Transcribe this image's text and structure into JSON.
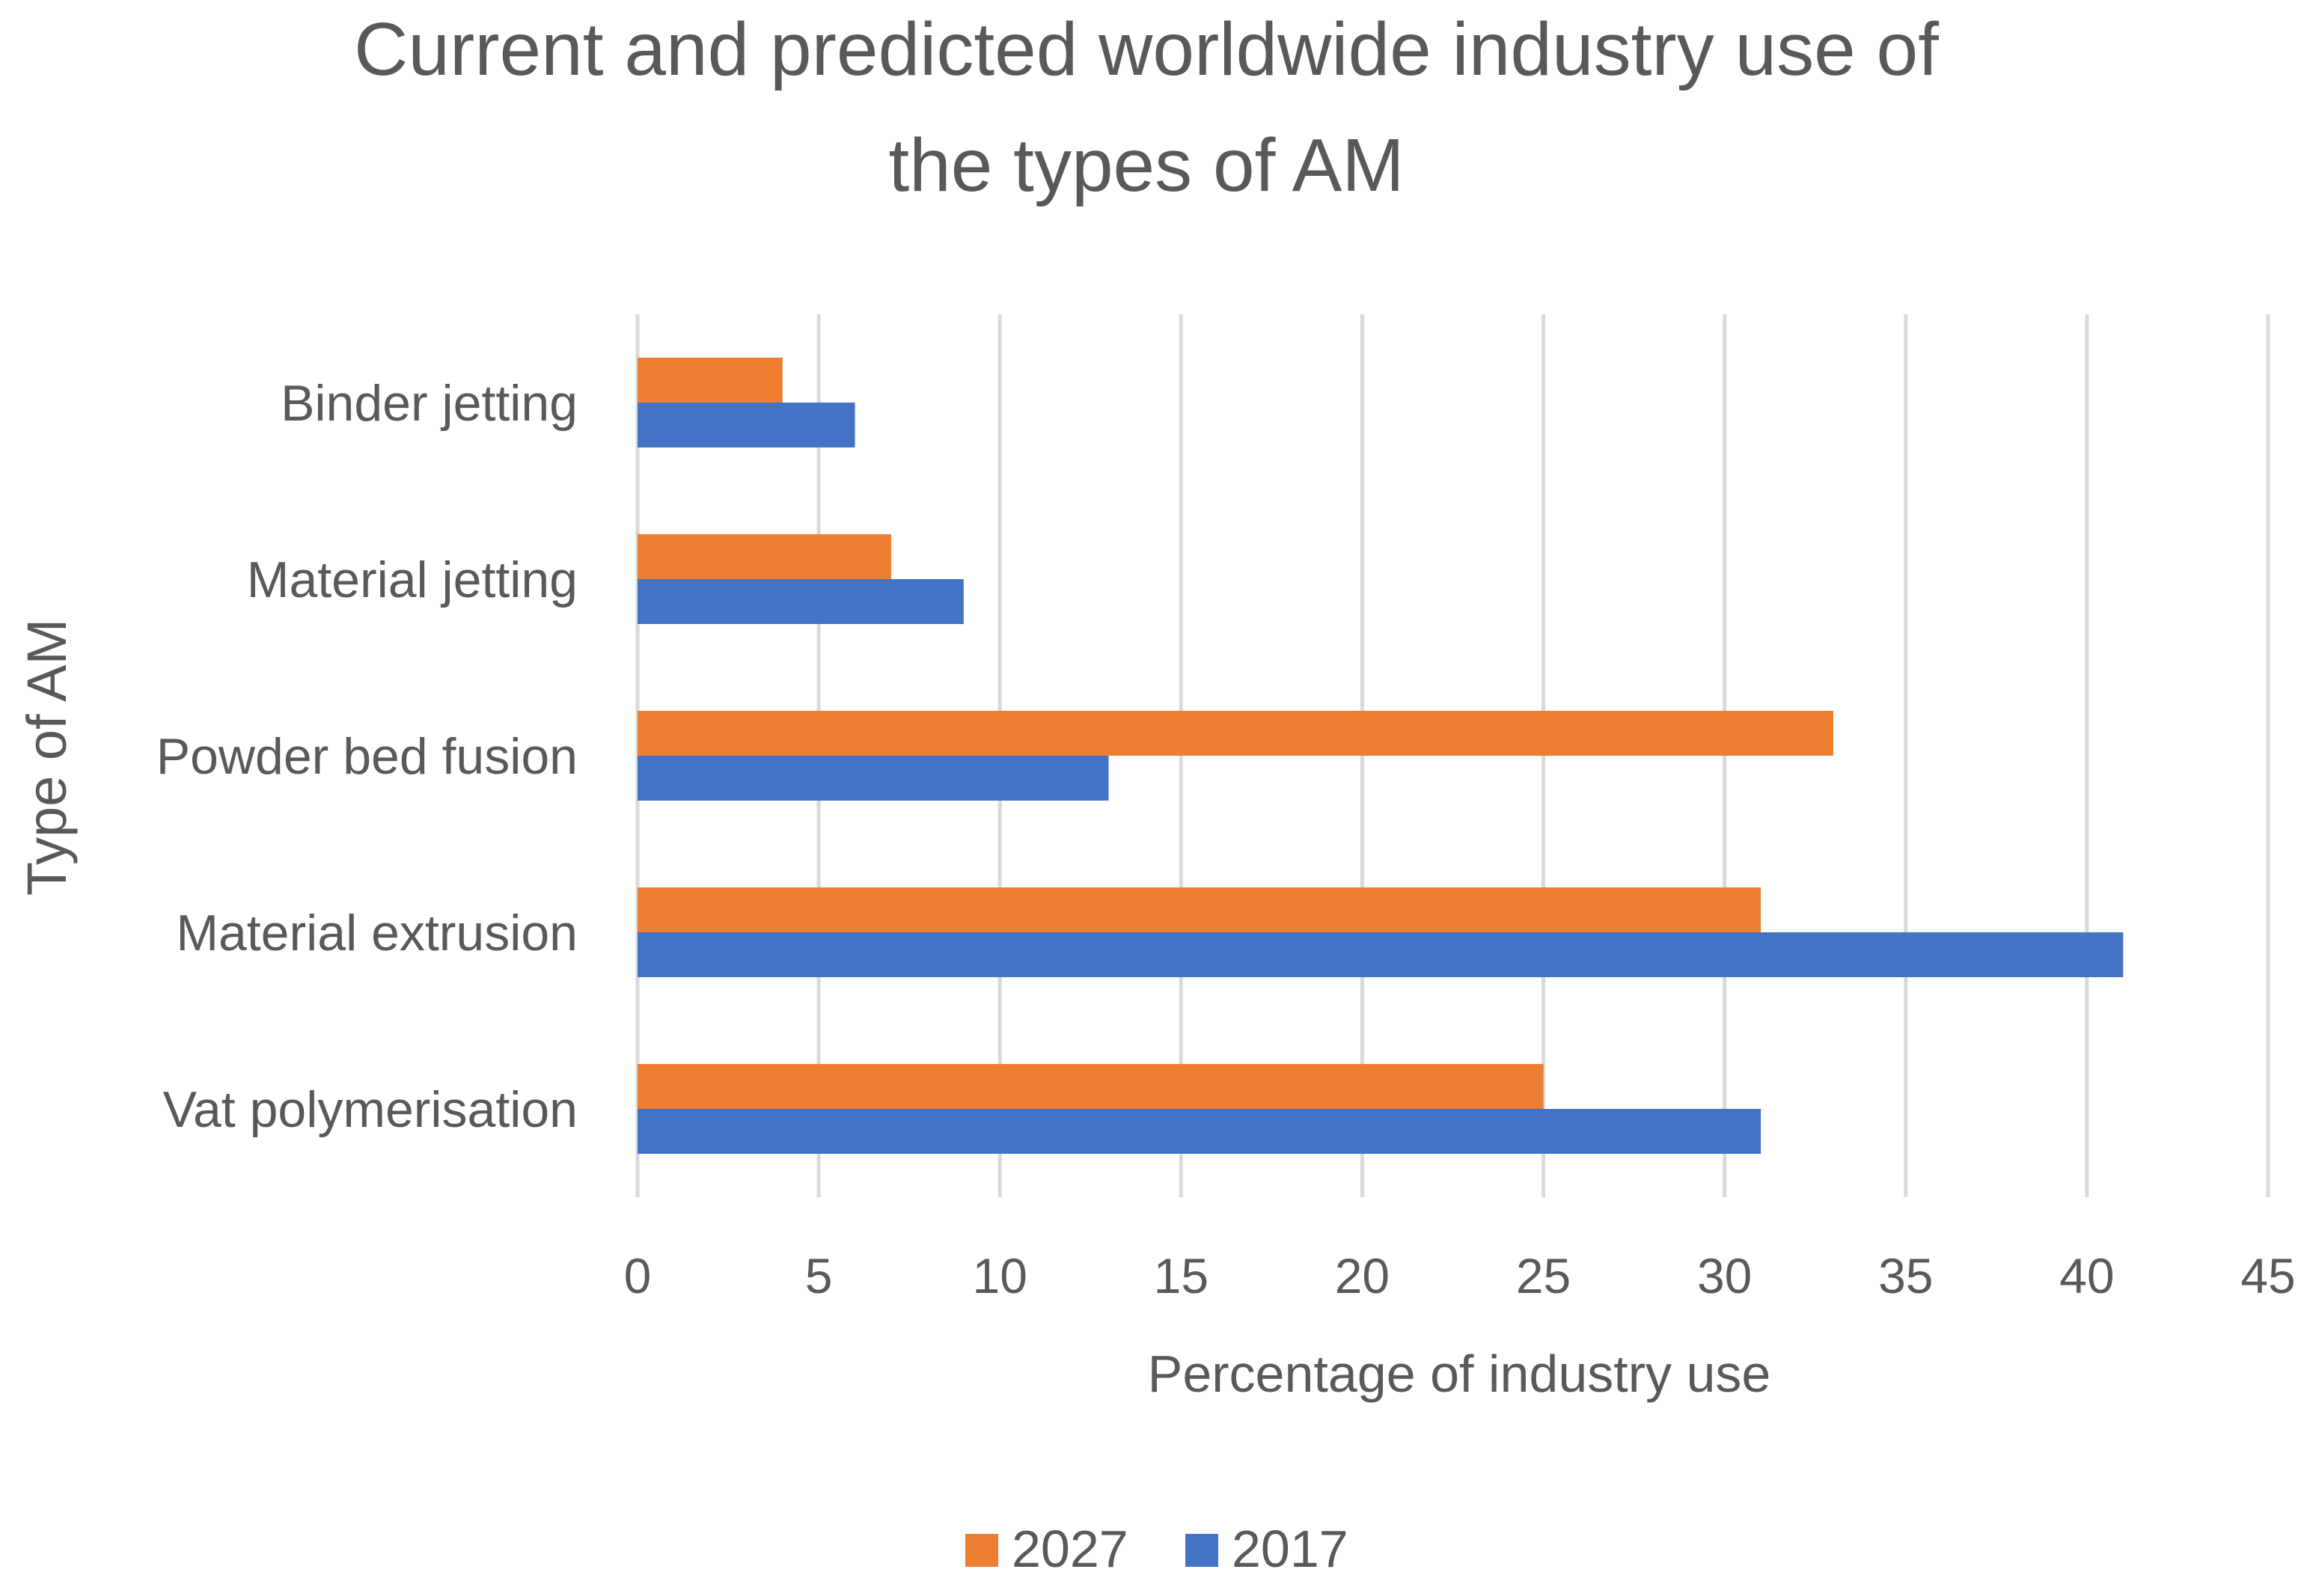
{
  "chart_data": {
    "type": "bar",
    "orientation": "horizontal",
    "title_lines": [
      "Current and predicted worldwide industry use of",
      "the types of AM"
    ],
    "xlabel": "Percentage of industry use",
    "ylabel": "Type of AM",
    "categories": [
      "Binder jetting",
      "Material jetting",
      "Powder bed fusion",
      "Material extrusion",
      "Vat polymerisation"
    ],
    "series": [
      {
        "name": "2027",
        "color": "#ED7D31",
        "values": [
          4,
          7,
          33,
          31,
          25
        ]
      },
      {
        "name": "2017",
        "color": "#4472C4",
        "values": [
          6,
          9,
          13,
          41,
          31
        ]
      }
    ],
    "xlim": [
      0,
      45
    ],
    "xticks": [
      "0",
      "5",
      "10",
      "15",
      "20",
      "25",
      "30",
      "35",
      "40",
      "45"
    ],
    "grid": true,
    "legend_position": "bottom"
  }
}
